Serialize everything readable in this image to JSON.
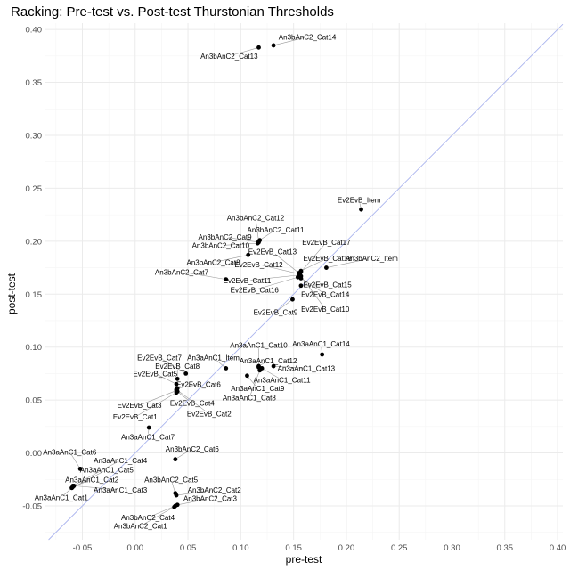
{
  "chart_data": {
    "type": "scatter",
    "title": "Racking: Pre-test vs. Post-test Thurstonian Thresholds",
    "xlabel": "pre-test",
    "ylabel": "post-test",
    "xlim": [
      -0.085,
      0.405
    ],
    "ylim": [
      -0.082,
      0.406
    ],
    "x_ticks": [
      -0.05,
      0.0,
      0.05,
      0.1,
      0.15,
      0.2,
      0.25,
      0.3,
      0.35,
      0.4
    ],
    "x_tick_labels": [
      "-0.05",
      "0.00",
      "0.05",
      "0.10",
      "0.15",
      "0.20",
      "0.25",
      "0.30",
      "0.35",
      "0.40"
    ],
    "y_ticks": [
      -0.05,
      0.0,
      0.05,
      0.1,
      0.15,
      0.2,
      0.25,
      0.3,
      0.35,
      0.4
    ],
    "y_tick_labels": [
      "-0.05",
      "0.00",
      "0.05",
      "0.10",
      "0.15",
      "0.20",
      "0.25",
      "0.30",
      "0.35",
      "0.40"
    ],
    "grid": true,
    "reference_line": "identity (y = x)",
    "reference_line_color": "#aab4ee",
    "point_color": "#000000",
    "points": [
      {
        "label": "An3bAnC2_Cat14",
        "x": 0.131,
        "y": 0.385,
        "lx": 0.163,
        "ly": 0.393
      },
      {
        "label": "An3bAnC2_Cat13",
        "x": 0.117,
        "y": 0.383,
        "lx": 0.089,
        "ly": 0.375
      },
      {
        "label": "Ev2EvB_Item",
        "x": 0.214,
        "y": 0.23,
        "lx": 0.212,
        "ly": 0.239
      },
      {
        "label": "An3bAnC2_Cat12",
        "x": 0.117,
        "y": 0.2,
        "lx": 0.114,
        "ly": 0.222
      },
      {
        "label": "An3bAnC2_Cat11",
        "x": 0.118,
        "y": 0.201,
        "lx": 0.133,
        "ly": 0.211
      },
      {
        "label": "An3bAnC2_Cat9",
        "x": 0.117,
        "y": 0.199,
        "lx": 0.085,
        "ly": 0.204
      },
      {
        "label": "An3bAnC2_Cat10",
        "x": 0.116,
        "y": 0.198,
        "lx": 0.081,
        "ly": 0.196
      },
      {
        "label": "Ev2EvB_Cat17",
        "x": 0.157,
        "y": 0.171,
        "lx": 0.181,
        "ly": 0.199
      },
      {
        "label": "Ev2EvB_Cat13",
        "x": 0.155,
        "y": 0.17,
        "lx": 0.13,
        "ly": 0.19
      },
      {
        "label": "An3bAnC2_Cat8",
        "x": 0.107,
        "y": 0.187,
        "lx": 0.074,
        "ly": 0.18
      },
      {
        "label": "Ev2EvB_Cat18",
        "x": 0.157,
        "y": 0.172,
        "lx": 0.182,
        "ly": 0.184
      },
      {
        "label": "An3bAnC2_Item",
        "x": 0.181,
        "y": 0.175,
        "lx": 0.224,
        "ly": 0.184
      },
      {
        "label": "Ev2EvB_Cat12",
        "x": 0.156,
        "y": 0.169,
        "lx": 0.117,
        "ly": 0.178
      },
      {
        "label": "An3bAnC2_Cat7",
        "x": 0.086,
        "y": 0.164,
        "lx": 0.044,
        "ly": 0.171
      },
      {
        "label": "Ev2EvB_Cat11",
        "x": 0.155,
        "y": 0.168,
        "lx": 0.106,
        "ly": 0.163
      },
      {
        "label": "Ev2EvB_Cat15",
        "x": 0.157,
        "y": 0.158,
        "lx": 0.182,
        "ly": 0.159
      },
      {
        "label": "Ev2EvB_Cat16",
        "x": 0.154,
        "y": 0.166,
        "lx": 0.113,
        "ly": 0.154
      },
      {
        "label": "Ev2EvB_Cat14",
        "x": 0.157,
        "y": 0.165,
        "lx": 0.18,
        "ly": 0.15
      },
      {
        "label": "Ev2EvB_Cat9",
        "x": 0.149,
        "y": 0.145,
        "lx": 0.133,
        "ly": 0.133
      },
      {
        "label": "Ev2EvB_Cat10",
        "x": 0.157,
        "y": 0.167,
        "lx": 0.18,
        "ly": 0.136
      },
      {
        "label": "An3aAnC1_Cat10",
        "x": 0.117,
        "y": 0.081,
        "lx": 0.117,
        "ly": 0.102
      },
      {
        "label": "An3aAnC1_Cat14",
        "x": 0.177,
        "y": 0.093,
        "lx": 0.176,
        "ly": 0.103
      },
      {
        "label": "Ev2EvB_Cat7",
        "x": 0.048,
        "y": 0.075,
        "lx": 0.023,
        "ly": 0.09
      },
      {
        "label": "An3aAnC1_Item",
        "x": 0.086,
        "y": 0.08,
        "lx": 0.074,
        "ly": 0.09
      },
      {
        "label": "Ev2EvB_Cat8",
        "x": 0.04,
        "y": 0.07,
        "lx": 0.04,
        "ly": 0.082
      },
      {
        "label": "An3aAnC1_Cat12",
        "x": 0.117,
        "y": 0.082,
        "lx": 0.126,
        "ly": 0.087
      },
      {
        "label": "An3aAnC1_Cat13",
        "x": 0.131,
        "y": 0.082,
        "lx": 0.162,
        "ly": 0.08
      },
      {
        "label": "Ev2EvB_Cat5",
        "x": 0.039,
        "y": 0.065,
        "lx": 0.019,
        "ly": 0.075
      },
      {
        "label": "An3aAnC1_Cat11",
        "x": 0.12,
        "y": 0.08,
        "lx": 0.139,
        "ly": 0.069
      },
      {
        "label": "Ev2EvB_Cat6",
        "x": 0.04,
        "y": 0.061,
        "lx": 0.06,
        "ly": 0.065
      },
      {
        "label": "An3aAnC1_Cat9",
        "x": 0.106,
        "y": 0.073,
        "lx": 0.116,
        "ly": 0.061
      },
      {
        "label": "An3aAnC1_Cat8",
        "x": 0.118,
        "y": 0.078,
        "lx": 0.108,
        "ly": 0.052
      },
      {
        "label": "Ev2EvB_Cat3",
        "x": 0.039,
        "y": 0.059,
        "lx": 0.004,
        "ly": 0.045
      },
      {
        "label": "Ev2EvB_Cat4",
        "x": 0.04,
        "y": 0.058,
        "lx": 0.054,
        "ly": 0.047
      },
      {
        "label": "Ev2EvB_Cat1",
        "x": 0.039,
        "y": 0.057,
        "lx": 0.0,
        "ly": 0.034
      },
      {
        "label": "Ev2EvB_Cat2",
        "x": 0.039,
        "y": 0.06,
        "lx": 0.07,
        "ly": 0.037
      },
      {
        "label": "An3aAnC1_Cat7",
        "x": 0.013,
        "y": 0.024,
        "lx": 0.012,
        "ly": 0.015
      },
      {
        "label": "An3bAnC2_Cat6",
        "x": 0.038,
        "y": -0.006,
        "lx": 0.054,
        "ly": 0.004
      },
      {
        "label": "An3aAnC1_Cat6",
        "x": -0.052,
        "y": -0.015,
        "lx": -0.062,
        "ly": 0.001
      },
      {
        "label": "An3aAnC1_Cat4",
        "x": -0.059,
        "y": -0.031,
        "lx": -0.014,
        "ly": -0.007
      },
      {
        "label": "An3aAnC1_Cat5",
        "x": -0.06,
        "y": -0.033,
        "lx": -0.027,
        "ly": -0.016
      },
      {
        "label": "An3aAnC1_Cat2",
        "x": -0.059,
        "y": -0.032,
        "lx": -0.041,
        "ly": -0.025
      },
      {
        "label": "An3bAnC2_Cat5",
        "x": 0.038,
        "y": -0.038,
        "lx": 0.034,
        "ly": -0.025
      },
      {
        "label": "An3aAnC1_Cat3",
        "x": -0.058,
        "y": -0.031,
        "lx": -0.014,
        "ly": -0.035
      },
      {
        "label": "An3bAnC2_Cat2",
        "x": 0.039,
        "y": -0.04,
        "lx": 0.075,
        "ly": -0.035
      },
      {
        "label": "An3aAnC1_Cat1",
        "x": -0.06,
        "y": -0.033,
        "lx": -0.07,
        "ly": -0.042
      },
      {
        "label": "An3bAnC2_Cat3",
        "x": 0.04,
        "y": -0.049,
        "lx": 0.071,
        "ly": -0.043
      },
      {
        "label": "An3bAnC2_Cat4",
        "x": 0.038,
        "y": -0.05,
        "lx": 0.012,
        "ly": -0.061
      },
      {
        "label": "An3bAnC2_Cat1",
        "x": 0.037,
        "y": -0.051,
        "lx": 0.005,
        "ly": -0.069
      }
    ]
  }
}
